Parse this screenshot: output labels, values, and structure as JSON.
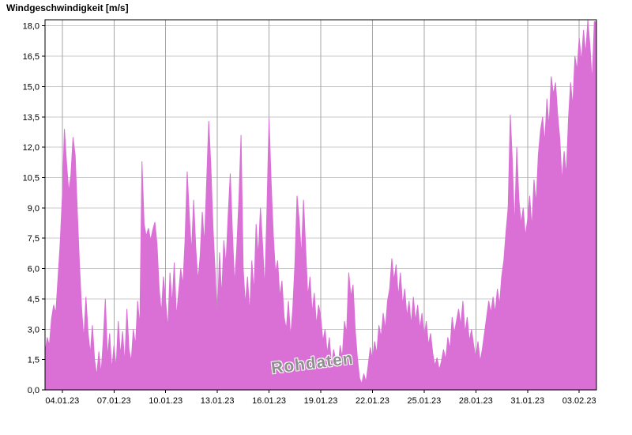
{
  "colors": {
    "area_fill": "#da70d6",
    "grid_h": "#c8c8c8",
    "grid_v": "#a6a6a6",
    "axis": "#000000",
    "background": "#ffffff",
    "watermark_text": "#8f8f8f",
    "label_text": "#000000"
  },
  "chart_data": {
    "type": "area",
    "title": "Windgeschwindigkeit [m/s]",
    "series_name": "Windgeschwindigkeit",
    "unit": "m/s",
    "watermark": "Rohdaten",
    "x_range_days": [
      0,
      32
    ],
    "points_per_day": 8,
    "ylim": [
      0,
      18.3
    ],
    "grid": true,
    "legend": "none",
    "y_tick_values": [
      0,
      1.5,
      3,
      4.5,
      6,
      7.5,
      9,
      10.5,
      12,
      13.5,
      15,
      16.5,
      18
    ],
    "y_tick_labels": [
      "0,0",
      "1,5",
      "3,0",
      "4,5",
      "6,0",
      "7,5",
      "9,0",
      "10,5",
      "12,0",
      "13,5",
      "15,0",
      "16,5",
      "18,0"
    ],
    "x_tick_days": [
      1,
      4,
      7,
      10,
      13,
      16,
      19,
      22,
      25,
      28,
      31
    ],
    "x_tick_labels": [
      "04.01.23",
      "07.01.23",
      "10.01.23",
      "13.01.23",
      "16.01.23",
      "19.01.23",
      "22.01.23",
      "25.01.23",
      "28.01.23",
      "31.01.23",
      "03.02.23"
    ],
    "values": [
      1.8,
      2.6,
      2.2,
      3.5,
      4.2,
      3.8,
      5.5,
      7.2,
      9.5,
      12.9,
      11.2,
      9.8,
      10.6,
      12.5,
      11.6,
      8.8,
      6.2,
      4.0,
      2.5,
      4.6,
      2.8,
      1.8,
      3.2,
      1.5,
      0.7,
      1.9,
      0.8,
      2.4,
      4.5,
      1.6,
      2.8,
      1.0,
      2.2,
      1.1,
      3.4,
      1.7,
      2.9,
      1.3,
      4.0,
      2.0,
      1.4,
      3.0,
      2.2,
      4.4,
      3.1,
      11.3,
      8.2,
      7.6,
      8.0,
      7.4,
      7.9,
      8.3,
      7.2,
      5.0,
      3.8,
      5.6,
      4.4,
      3.0,
      5.8,
      4.2,
      6.3,
      3.6,
      4.8,
      6.0,
      5.2,
      7.4,
      10.8,
      8.6,
      6.8,
      9.4,
      7.0,
      5.4,
      6.6,
      8.8,
      7.2,
      10.2,
      13.3,
      11.0,
      8.0,
      5.8,
      3.4,
      6.8,
      4.6,
      7.4,
      6.2,
      8.6,
      10.7,
      7.8,
      5.2,
      7.0,
      9.4,
      12.6,
      6.0,
      4.2,
      5.6,
      3.8,
      6.4,
      4.8,
      8.2,
      6.6,
      9.0,
      7.2,
      5.0,
      8.8,
      13.4,
      10.2,
      7.6,
      5.8,
      6.4,
      4.6,
      5.4,
      3.6,
      3.0,
      4.4,
      2.6,
      4.0,
      6.2,
      9.6,
      8.4,
      6.6,
      9.4,
      7.0,
      4.6,
      5.6,
      3.8,
      4.8,
      3.2,
      4.2,
      3.6,
      2.4,
      3.0,
      1.8,
      2.6,
      1.2,
      2.0,
      1.4,
      1.0,
      2.2,
      1.6,
      3.4,
      2.8,
      5.8,
      4.6,
      5.2,
      3.0,
      1.6,
      0.6,
      0.3,
      0.8,
      0.4,
      1.2,
      2.1,
      1.5,
      2.4,
      1.8,
      3.2,
      2.6,
      3.8,
      3.0,
      4.4,
      5.0,
      6.5,
      5.4,
      6.2,
      4.6,
      5.8,
      4.2,
      5.0,
      3.6,
      4.4,
      3.2,
      4.6,
      3.4,
      4.2,
      3.0,
      3.8,
      2.6,
      3.4,
      2.2,
      2.8,
      1.8,
      1.2,
      1.6,
      1.0,
      1.4,
      2.0,
      1.5,
      2.6,
      2.0,
      3.6,
      2.8,
      3.4,
      4.0,
      3.2,
      4.4,
      2.8,
      3.6,
      2.4,
      3.0,
      2.2,
      1.6,
      2.4,
      1.4,
      2.0,
      2.8,
      3.6,
      4.4,
      3.8,
      4.6,
      3.8,
      5.0,
      4.2,
      5.6,
      6.4,
      7.8,
      9.0,
      13.6,
      11.2,
      8.0,
      12.0,
      9.4,
      8.2,
      9.0,
      7.6,
      8.4,
      9.6,
      8.0,
      10.4,
      9.2,
      11.6,
      12.8,
      13.5,
      12.2,
      14.4,
      13.0,
      15.5,
      14.6,
      15.2,
      13.6,
      12.4,
      10.3,
      11.8,
      10.6,
      13.4,
      15.2,
      14.0,
      16.5,
      15.8,
      17.4,
      16.2,
      17.8,
      16.6,
      18.4,
      17.0,
      15.2,
      18.2
    ]
  }
}
